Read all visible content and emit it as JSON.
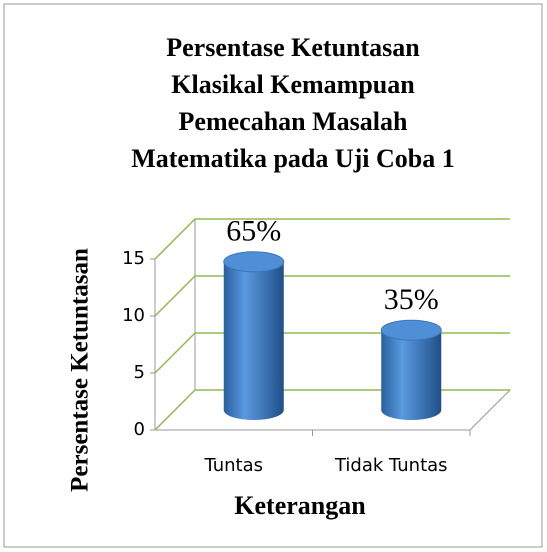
{
  "chart_data": {
    "type": "bar",
    "title": [
      "Persentase Ketuntasan",
      "Klasikal Kemampuan",
      "Pemecahan Masalah",
      "Matematika pada Uji Coba 1"
    ],
    "y_label": "Persentase Ketuntasan",
    "x_label": "Keterangan",
    "categories": [
      "Tuntas",
      "Tidak Tuntas"
    ],
    "values": [
      13,
      7
    ],
    "annotations": [
      "65%",
      "35%"
    ],
    "color": "#3f82c9",
    "grid_color": "#8fbc4f",
    "ylim": [
      0,
      15
    ],
    "yticks": [
      0,
      5,
      10,
      15
    ],
    "grid": true
  }
}
